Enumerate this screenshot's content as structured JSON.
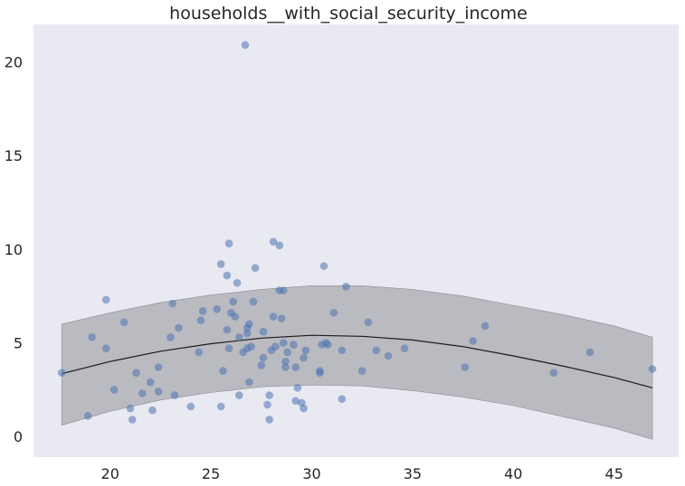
{
  "chart_data": {
    "type": "scatter",
    "title": "households__with_social_security_income",
    "xlabel": "",
    "ylabel": "",
    "xlim": [
      16.2,
      48.2
    ],
    "ylim": [
      -1.1,
      22.0
    ],
    "x_ticks": [
      20,
      25,
      30,
      35,
      40,
      45
    ],
    "y_ticks": [
      0,
      5,
      10,
      15,
      20
    ],
    "grid": false,
    "colors": {
      "plot_background": "#e9e9f2",
      "points": "#4c72b0",
      "band": "#a9a9b0",
      "line": "#1a1a1a"
    },
    "points": [
      {
        "x": 17.6,
        "y": 3.4
      },
      {
        "x": 18.9,
        "y": 1.1
      },
      {
        "x": 19.1,
        "y": 5.3
      },
      {
        "x": 19.8,
        "y": 4.7
      },
      {
        "x": 19.8,
        "y": 7.3
      },
      {
        "x": 20.2,
        "y": 2.5
      },
      {
        "x": 20.7,
        "y": 6.1
      },
      {
        "x": 21.0,
        "y": 1.5
      },
      {
        "x": 21.1,
        "y": 0.9
      },
      {
        "x": 21.3,
        "y": 3.4
      },
      {
        "x": 21.6,
        "y": 2.3
      },
      {
        "x": 22.0,
        "y": 2.9
      },
      {
        "x": 22.1,
        "y": 1.4
      },
      {
        "x": 22.4,
        "y": 3.7
      },
      {
        "x": 22.4,
        "y": 2.4
      },
      {
        "x": 23.0,
        "y": 5.3
      },
      {
        "x": 23.1,
        "y": 7.1
      },
      {
        "x": 23.2,
        "y": 2.2
      },
      {
        "x": 23.4,
        "y": 5.8
      },
      {
        "x": 24.0,
        "y": 1.6
      },
      {
        "x": 24.4,
        "y": 4.5
      },
      {
        "x": 24.5,
        "y": 6.2
      },
      {
        "x": 24.6,
        "y": 6.7
      },
      {
        "x": 25.3,
        "y": 6.8
      },
      {
        "x": 25.5,
        "y": 9.2
      },
      {
        "x": 25.5,
        "y": 1.6
      },
      {
        "x": 25.6,
        "y": 3.5
      },
      {
        "x": 25.8,
        "y": 8.6
      },
      {
        "x": 25.8,
        "y": 5.7
      },
      {
        "x": 25.9,
        "y": 10.3
      },
      {
        "x": 25.9,
        "y": 4.7
      },
      {
        "x": 26.0,
        "y": 6.6
      },
      {
        "x": 26.1,
        "y": 7.2
      },
      {
        "x": 26.2,
        "y": 6.4
      },
      {
        "x": 26.3,
        "y": 8.2
      },
      {
        "x": 26.4,
        "y": 5.3
      },
      {
        "x": 26.4,
        "y": 2.2
      },
      {
        "x": 26.6,
        "y": 4.5
      },
      {
        "x": 26.7,
        "y": 20.9
      },
      {
        "x": 26.8,
        "y": 5.8
      },
      {
        "x": 26.8,
        "y": 5.5
      },
      {
        "x": 26.8,
        "y": 4.7
      },
      {
        "x": 26.9,
        "y": 6.0
      },
      {
        "x": 26.9,
        "y": 2.9
      },
      {
        "x": 27.0,
        "y": 4.8
      },
      {
        "x": 27.1,
        "y": 7.2
      },
      {
        "x": 27.2,
        "y": 9.0
      },
      {
        "x": 27.5,
        "y": 3.8
      },
      {
        "x": 27.6,
        "y": 5.6
      },
      {
        "x": 27.6,
        "y": 4.2
      },
      {
        "x": 27.8,
        "y": 1.7
      },
      {
        "x": 27.9,
        "y": 0.9
      },
      {
        "x": 27.9,
        "y": 2.2
      },
      {
        "x": 28.0,
        "y": 4.6
      },
      {
        "x": 28.1,
        "y": 10.4
      },
      {
        "x": 28.1,
        "y": 6.4
      },
      {
        "x": 28.2,
        "y": 4.8
      },
      {
        "x": 28.4,
        "y": 10.2
      },
      {
        "x": 28.4,
        "y": 7.8
      },
      {
        "x": 28.5,
        "y": 6.3
      },
      {
        "x": 28.6,
        "y": 7.8
      },
      {
        "x": 28.6,
        "y": 5.0
      },
      {
        "x": 28.7,
        "y": 4.0
      },
      {
        "x": 28.7,
        "y": 3.7
      },
      {
        "x": 28.8,
        "y": 4.5
      },
      {
        "x": 29.1,
        "y": 4.9
      },
      {
        "x": 29.2,
        "y": 3.7
      },
      {
        "x": 29.2,
        "y": 1.9
      },
      {
        "x": 29.3,
        "y": 2.6
      },
      {
        "x": 29.5,
        "y": 1.8
      },
      {
        "x": 29.6,
        "y": 4.2
      },
      {
        "x": 29.6,
        "y": 1.5
      },
      {
        "x": 29.7,
        "y": 4.6
      },
      {
        "x": 30.4,
        "y": 3.5
      },
      {
        "x": 30.4,
        "y": 3.4
      },
      {
        "x": 30.5,
        "y": 4.9
      },
      {
        "x": 30.6,
        "y": 9.1
      },
      {
        "x": 30.7,
        "y": 5.0
      },
      {
        "x": 30.8,
        "y": 4.9
      },
      {
        "x": 31.1,
        "y": 6.6
      },
      {
        "x": 31.5,
        "y": 4.6
      },
      {
        "x": 31.5,
        "y": 2.0
      },
      {
        "x": 31.7,
        "y": 8.0
      },
      {
        "x": 32.5,
        "y": 3.5
      },
      {
        "x": 32.8,
        "y": 6.1
      },
      {
        "x": 33.2,
        "y": 4.6
      },
      {
        "x": 33.8,
        "y": 4.3
      },
      {
        "x": 34.6,
        "y": 4.7
      },
      {
        "x": 37.6,
        "y": 3.7
      },
      {
        "x": 38.0,
        "y": 5.1
      },
      {
        "x": 38.6,
        "y": 5.9
      },
      {
        "x": 42.0,
        "y": 3.4
      },
      {
        "x": 43.8,
        "y": 4.5
      },
      {
        "x": 46.9,
        "y": 3.6
      }
    ],
    "fit_line": {
      "x": [
        17.6,
        20.0,
        22.5,
        25.0,
        27.5,
        30.0,
        32.5,
        35.0,
        37.5,
        40.0,
        42.5,
        45.0,
        46.9
      ],
      "y": [
        3.35,
        4.0,
        4.55,
        4.95,
        5.25,
        5.4,
        5.35,
        5.15,
        4.8,
        4.3,
        3.75,
        3.15,
        2.6
      ]
    },
    "confidence_band": {
      "x": [
        17.6,
        20.0,
        22.5,
        25.0,
        27.5,
        30.0,
        32.5,
        35.0,
        37.5,
        40.0,
        42.5,
        45.0,
        46.9
      ],
      "upper": [
        6.0,
        6.6,
        7.15,
        7.55,
        7.85,
        8.05,
        8.05,
        7.85,
        7.5,
        7.0,
        6.5,
        5.9,
        5.3
      ],
      "lower": [
        0.6,
        1.35,
        1.95,
        2.35,
        2.65,
        2.75,
        2.7,
        2.45,
        2.1,
        1.65,
        1.05,
        0.45,
        -0.15
      ]
    }
  }
}
